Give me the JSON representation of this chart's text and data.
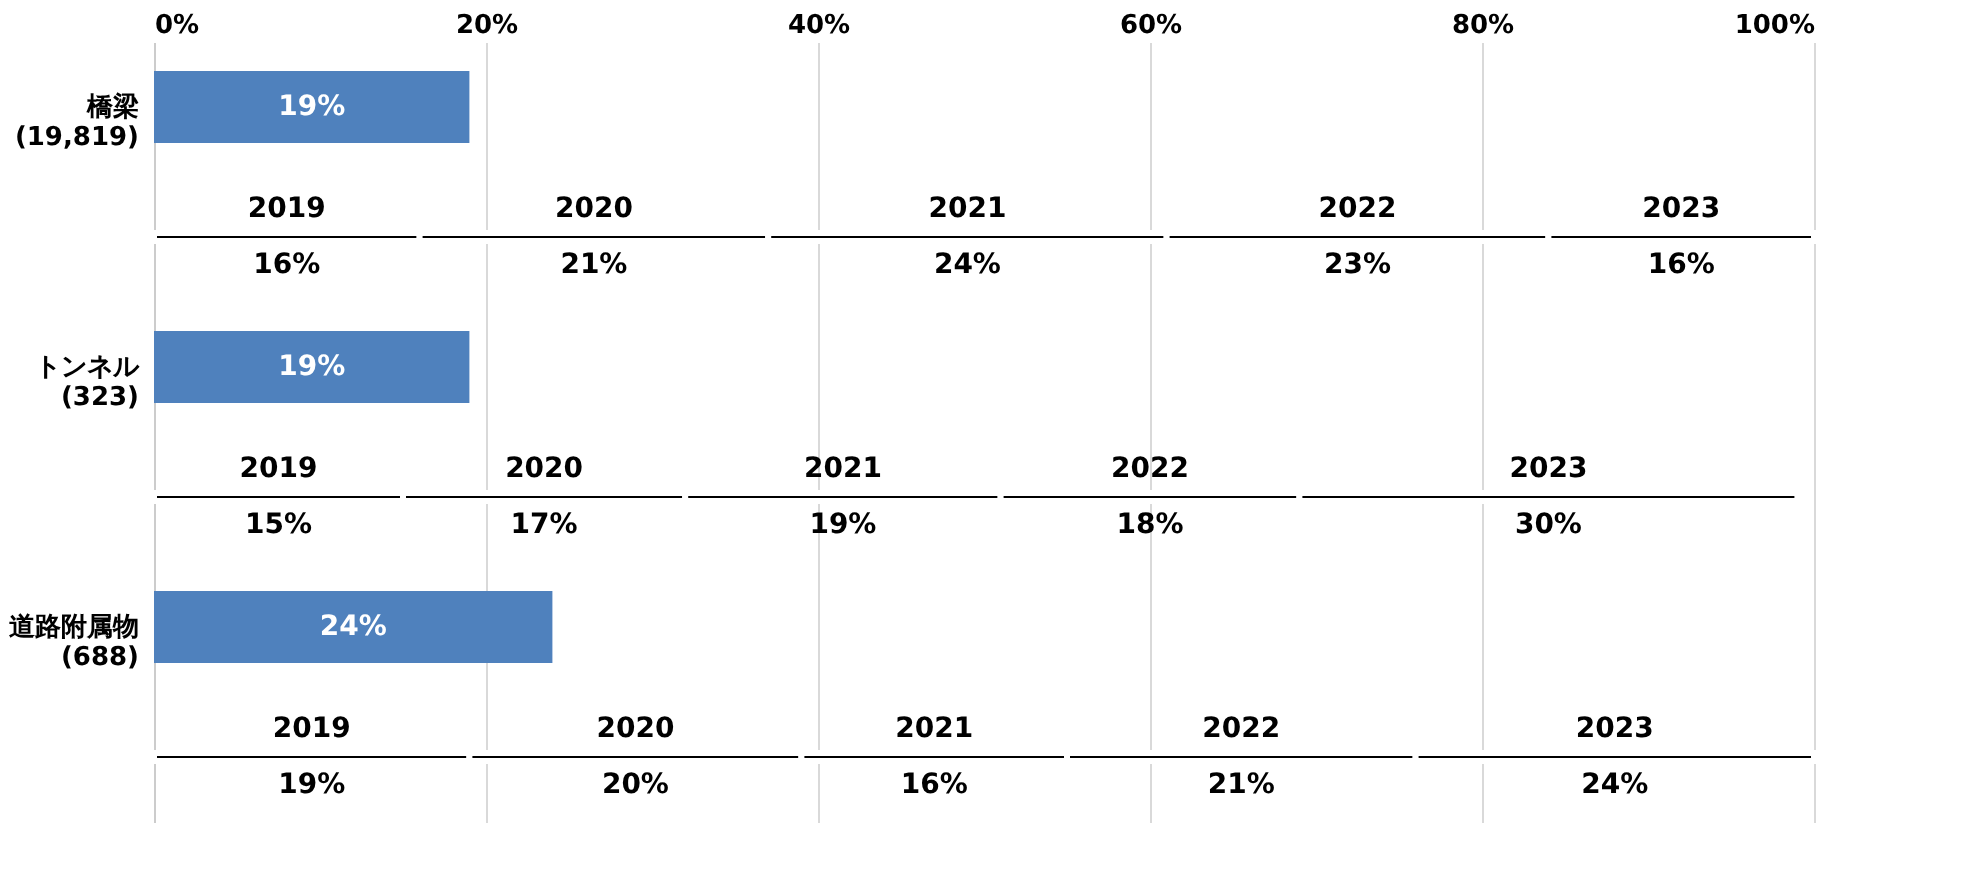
{
  "chart_data": {
    "type": "bar",
    "orientation": "horizontal",
    "stacked": true,
    "categories": [
      "橋梁\n(19,819)",
      null,
      "トンネル\n(323)",
      null,
      "道路附属物\n(688)",
      null
    ],
    "series": [
      {
        "color": "#4f81bd",
        "values": [
          19,
          null,
          19,
          null,
          24,
          null
        ],
        "value_labels": [
          "19%",
          null,
          "19%",
          null,
          "24%",
          null
        ]
      },
      {
        "name": "2019",
        "color": "#000000",
        "values": [
          null,
          16,
          null,
          15,
          null,
          19
        ],
        "value_labels": [
          null,
          "16%",
          null,
          "15%",
          null,
          "19%"
        ]
      },
      {
        "name": "2020",
        "color": "#000000",
        "values": [
          null,
          21,
          null,
          17,
          null,
          20
        ],
        "value_labels": [
          null,
          "21%",
          null,
          "17%",
          null,
          "20%"
        ]
      },
      {
        "name": "2021",
        "color": "#000000",
        "values": [
          null,
          24,
          null,
          19,
          null,
          16
        ],
        "value_labels": [
          null,
          "24%",
          null,
          "19%",
          null,
          "16%"
        ]
      },
      {
        "name": "2022",
        "color": "#000000",
        "values": [
          null,
          23,
          null,
          18,
          null,
          21
        ],
        "value_labels": [
          null,
          "23%",
          null,
          "18%",
          null,
          "21%"
        ]
      },
      {
        "name": "2023",
        "color": "#000000",
        "values": [
          null,
          16,
          null,
          30,
          null,
          24
        ],
        "value_labels": [
          null,
          "16%",
          null,
          "30%",
          null,
          "24%"
        ]
      }
    ],
    "xlim": [
      0,
      100
    ],
    "xticks": [
      {
        "value": 0,
        "label": "0%"
      },
      {
        "value": 20,
        "label": "20%"
      },
      {
        "value": 40,
        "label": "40%"
      },
      {
        "value": 60,
        "label": "60%"
      },
      {
        "value": 80,
        "label": "80%"
      },
      {
        "value": 100,
        "label": "100%"
      }
    ],
    "grid": "x",
    "legend": false
  }
}
